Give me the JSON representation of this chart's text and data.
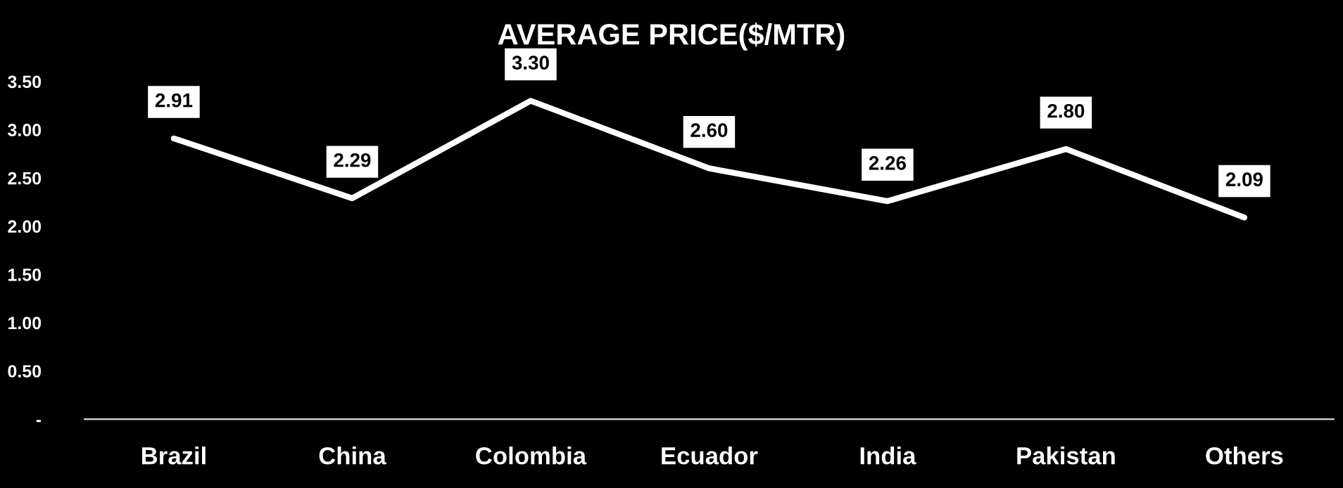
{
  "chart_data": {
    "type": "line",
    "title": "AVERAGE PRICE($/MTR)",
    "categories": [
      "Brazil",
      "China",
      "Colombia",
      "Ecuador",
      "India",
      "Pakistan",
      "Others"
    ],
    "series": [
      {
        "color": "#ffffff",
        "values": [
          2.91,
          2.29,
          3.3,
          2.6,
          2.26,
          2.8,
          2.09
        ]
      }
    ],
    "value_labels": [
      "2.91",
      "2.29",
      "3.30",
      "2.60",
      "2.26",
      "2.80",
      "2.09"
    ],
    "ylim": [
      0,
      3.5
    ],
    "yticks": [
      {
        "value": 0,
        "label": "-"
      },
      {
        "value": 0.5,
        "label": "0.50"
      },
      {
        "value": 1.0,
        "label": "1.00"
      },
      {
        "value": 1.5,
        "label": "1.50"
      },
      {
        "value": 2.0,
        "label": "2.00"
      },
      {
        "value": 2.5,
        "label": "2.50"
      },
      {
        "value": 3.0,
        "label": "3.00"
      },
      {
        "value": 3.5,
        "label": "3.50"
      }
    ],
    "grid": false,
    "legend": false,
    "marker": "none",
    "line_style": "solid"
  }
}
